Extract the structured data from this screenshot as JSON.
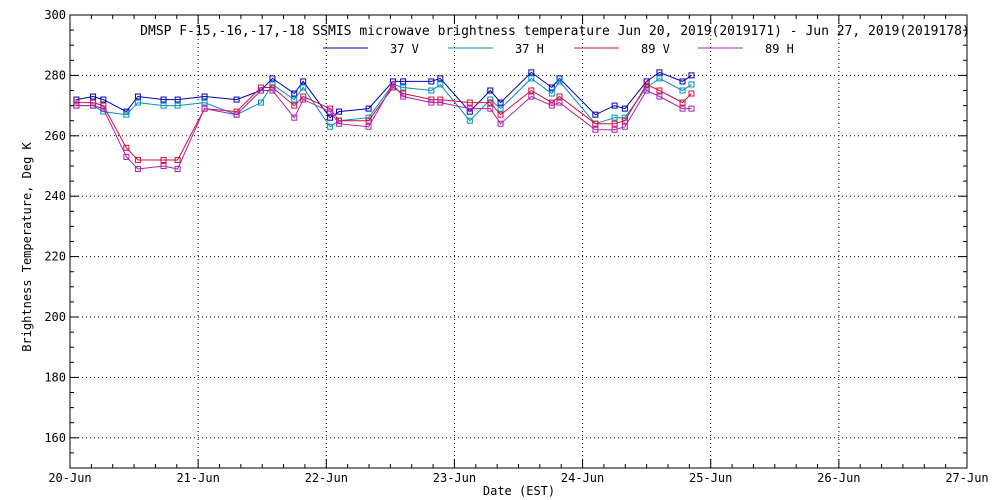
{
  "chart_data": {
    "type": "line",
    "title": "DMSP F-15,-16,-17,-18 SSMIS microwave brightness temperature Jun 20, 2019(2019171) - Jun 27, 2019(2019178)",
    "xlabel": "Date (EST)",
    "ylabel": "Brightness Temperature, Deg K",
    "x_ticks": [
      "20-Jun",
      "21-Jun",
      "22-Jun",
      "23-Jun",
      "24-Jun",
      "25-Jun",
      "26-Jun",
      "27-Jun"
    ],
    "x_range_days": [
      0,
      7
    ],
    "ylim": [
      150,
      300
    ],
    "y_ticks": [
      160,
      180,
      200,
      220,
      240,
      260,
      280,
      300
    ],
    "grid": true,
    "legend_position": "top-center",
    "series": [
      {
        "name": "37 V",
        "color": "#0000b0",
        "points": [
          [
            0.05,
            272
          ],
          [
            0.18,
            273
          ],
          [
            0.26,
            272
          ],
          [
            0.44,
            268
          ],
          [
            0.53,
            273
          ],
          [
            0.73,
            272
          ],
          [
            0.84,
            272
          ],
          [
            1.05,
            273
          ],
          [
            1.3,
            272
          ],
          [
            1.49,
            275
          ],
          [
            1.58,
            279
          ],
          [
            1.75,
            274
          ],
          [
            1.82,
            278
          ],
          [
            2.03,
            266
          ],
          [
            2.1,
            268
          ],
          [
            2.33,
            269
          ],
          [
            2.52,
            278
          ],
          [
            2.6,
            278
          ],
          [
            2.82,
            278
          ],
          [
            2.89,
            279
          ],
          [
            3.12,
            268
          ],
          [
            3.28,
            275
          ],
          [
            3.36,
            271
          ],
          [
            3.6,
            281
          ],
          [
            3.76,
            276
          ],
          [
            3.82,
            279
          ],
          [
            4.1,
            267
          ],
          [
            4.25,
            270
          ],
          [
            4.33,
            269
          ],
          [
            4.5,
            278
          ],
          [
            4.6,
            281
          ],
          [
            4.78,
            278
          ],
          [
            4.85,
            280
          ]
        ]
      },
      {
        "name": "37 H",
        "color": "#0090c0",
        "points": [
          [
            0.05,
            270
          ],
          [
            0.18,
            270
          ],
          [
            0.26,
            268
          ],
          [
            0.44,
            267
          ],
          [
            0.53,
            271
          ],
          [
            0.73,
            270
          ],
          [
            0.84,
            270
          ],
          [
            1.05,
            271
          ],
          [
            1.3,
            267
          ],
          [
            1.49,
            271
          ],
          [
            1.58,
            277
          ],
          [
            1.75,
            272
          ],
          [
            1.82,
            276
          ],
          [
            2.03,
            263
          ],
          [
            2.1,
            265
          ],
          [
            2.33,
            266
          ],
          [
            2.52,
            277
          ],
          [
            2.6,
            276
          ],
          [
            2.82,
            275
          ],
          [
            2.89,
            277
          ],
          [
            3.12,
            265
          ],
          [
            3.28,
            272
          ],
          [
            3.36,
            269
          ],
          [
            3.6,
            279
          ],
          [
            3.76,
            274
          ],
          [
            3.82,
            278
          ],
          [
            4.1,
            264
          ],
          [
            4.25,
            266
          ],
          [
            4.33,
            266
          ],
          [
            4.5,
            276
          ],
          [
            4.6,
            279
          ],
          [
            4.78,
            275
          ],
          [
            4.85,
            277
          ]
        ]
      },
      {
        "name": "89 V",
        "color": "#d0103a",
        "points": [
          [
            0.05,
            271
          ],
          [
            0.18,
            271
          ],
          [
            0.26,
            270
          ],
          [
            0.44,
            256
          ],
          [
            0.53,
            252
          ],
          [
            0.73,
            252
          ],
          [
            0.84,
            252
          ],
          [
            1.05,
            269
          ],
          [
            1.3,
            268
          ],
          [
            1.49,
            276
          ],
          [
            1.58,
            276
          ],
          [
            1.75,
            270
          ],
          [
            1.82,
            273
          ],
          [
            2.03,
            269
          ],
          [
            2.1,
            265
          ],
          [
            2.33,
            265
          ],
          [
            2.52,
            276
          ],
          [
            2.6,
            274
          ],
          [
            2.82,
            272
          ],
          [
            2.89,
            272
          ],
          [
            3.12,
            271
          ],
          [
            3.28,
            271
          ],
          [
            3.36,
            267
          ],
          [
            3.6,
            275
          ],
          [
            3.76,
            271
          ],
          [
            3.82,
            273
          ],
          [
            4.1,
            264
          ],
          [
            4.25,
            264
          ],
          [
            4.33,
            265
          ],
          [
            4.5,
            277
          ],
          [
            4.6,
            275
          ],
          [
            4.78,
            271
          ],
          [
            4.85,
            274
          ]
        ]
      },
      {
        "name": "89 H",
        "color": "#b020b0",
        "points": [
          [
            0.05,
            270
          ],
          [
            0.18,
            270
          ],
          [
            0.26,
            269
          ],
          [
            0.44,
            253
          ],
          [
            0.53,
            249
          ],
          [
            0.73,
            250
          ],
          [
            0.84,
            249
          ],
          [
            1.05,
            269
          ],
          [
            1.3,
            267
          ],
          [
            1.49,
            275
          ],
          [
            1.58,
            275
          ],
          [
            1.75,
            266
          ],
          [
            1.82,
            272
          ],
          [
            2.03,
            268
          ],
          [
            2.1,
            264
          ],
          [
            2.33,
            263
          ],
          [
            2.52,
            277
          ],
          [
            2.6,
            273
          ],
          [
            2.82,
            271
          ],
          [
            2.89,
            271
          ],
          [
            3.12,
            269
          ],
          [
            3.28,
            269
          ],
          [
            3.36,
            264
          ],
          [
            3.6,
            273
          ],
          [
            3.76,
            270
          ],
          [
            3.82,
            271
          ],
          [
            4.1,
            262
          ],
          [
            4.25,
            262
          ],
          [
            4.33,
            263
          ],
          [
            4.5,
            275
          ],
          [
            4.6,
            273
          ],
          [
            4.78,
            269
          ],
          [
            4.85,
            269
          ]
        ]
      }
    ]
  }
}
